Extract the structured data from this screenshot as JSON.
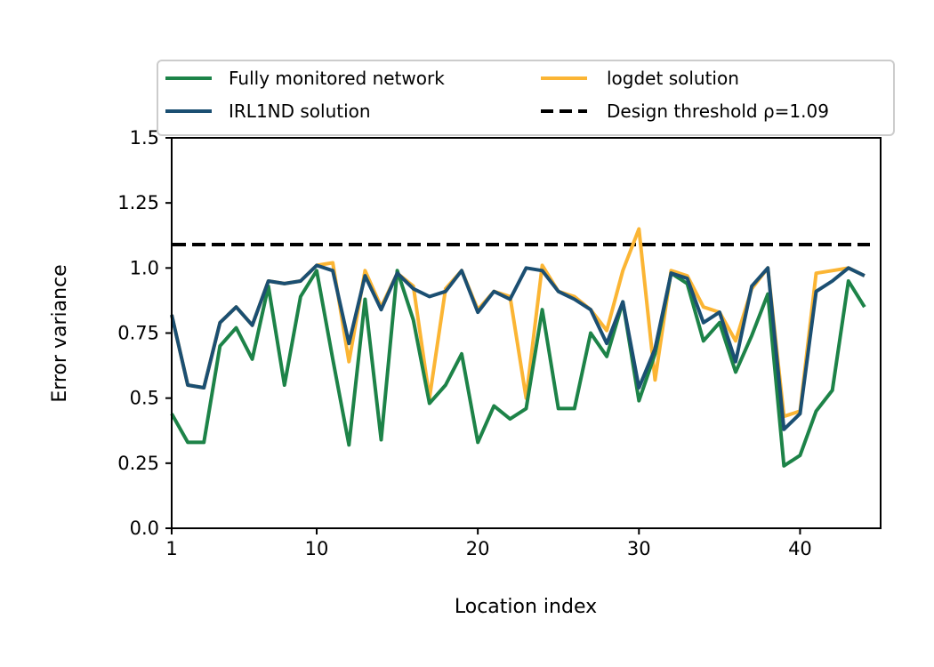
{
  "chart_data": {
    "type": "line",
    "title": "",
    "xlabel": "Location index",
    "ylabel": "Error variance",
    "xlim": [
      1,
      45
    ],
    "ylim": [
      0,
      1.5
    ],
    "grid": false,
    "legend_position": "top",
    "x_ticks": [
      {
        "value": 1,
        "label": "1"
      },
      {
        "value": 10,
        "label": "10"
      },
      {
        "value": 20,
        "label": "20"
      },
      {
        "value": 30,
        "label": "30"
      },
      {
        "value": 40,
        "label": "40"
      }
    ],
    "y_ticks": [
      {
        "value": 0,
        "label": "0.0"
      },
      {
        "value": 0.25,
        "label": "0.25"
      },
      {
        "value": 0.5,
        "label": "0.5"
      },
      {
        "value": 0.75,
        "label": "0.75"
      },
      {
        "value": 1.0,
        "label": "1.0"
      },
      {
        "value": 1.25,
        "label": "1.25"
      },
      {
        "value": 1.5,
        "label": "1.5"
      }
    ],
    "threshold": {
      "name": "Design threshold ρ=1.09",
      "value": 1.09,
      "color": "#000000",
      "dash": true
    },
    "x": [
      1,
      2,
      3,
      4,
      5,
      6,
      7,
      8,
      9,
      10,
      11,
      12,
      13,
      14,
      15,
      16,
      17,
      18,
      19,
      20,
      21,
      22,
      23,
      24,
      25,
      26,
      27,
      28,
      29,
      30,
      31,
      32,
      33,
      34,
      35,
      36,
      37,
      38,
      39,
      40,
      41,
      42,
      43,
      44
    ],
    "series": [
      {
        "name": "logdet solution",
        "color": "#fbb534",
        "values": [
          0.82,
          0.55,
          0.54,
          0.79,
          0.85,
          0.78,
          0.95,
          0.94,
          0.95,
          1.01,
          1.02,
          0.64,
          0.99,
          0.85,
          0.98,
          0.93,
          0.5,
          0.92,
          0.99,
          0.84,
          0.91,
          0.89,
          0.5,
          1.01,
          0.91,
          0.89,
          0.84,
          0.76,
          0.99,
          1.15,
          0.57,
          0.99,
          0.97,
          0.85,
          0.83,
          0.72,
          0.92,
          1.0,
          0.43,
          0.45,
          0.98,
          0.99,
          1.0,
          0.97
        ]
      },
      {
        "name": "Fully monitored network",
        "color": "#1d8348",
        "values": [
          0.44,
          0.33,
          0.33,
          0.7,
          0.77,
          0.65,
          0.93,
          0.55,
          0.89,
          0.99,
          0.65,
          0.32,
          0.88,
          0.34,
          0.99,
          0.8,
          0.48,
          0.55,
          0.67,
          0.33,
          0.47,
          0.42,
          0.46,
          0.84,
          0.46,
          0.46,
          0.75,
          0.66,
          0.87,
          0.49,
          0.67,
          0.98,
          0.94,
          0.72,
          0.79,
          0.6,
          0.74,
          0.9,
          0.24,
          0.28,
          0.45,
          0.53,
          0.95,
          0.85
        ]
      },
      {
        "name": "IRL1ND solution",
        "color": "#1b4f72",
        "values": [
          0.82,
          0.55,
          0.54,
          0.79,
          0.85,
          0.78,
          0.95,
          0.94,
          0.95,
          1.01,
          0.99,
          0.71,
          0.97,
          0.84,
          0.98,
          0.92,
          0.89,
          0.91,
          0.99,
          0.83,
          0.91,
          0.88,
          1.0,
          0.99,
          0.91,
          0.88,
          0.84,
          0.71,
          0.87,
          0.54,
          0.69,
          0.98,
          0.96,
          0.79,
          0.83,
          0.64,
          0.93,
          1.0,
          0.38,
          0.44,
          0.91,
          0.95,
          1.0,
          0.97
        ]
      }
    ],
    "legend": [
      {
        "label": "Fully monitored network",
        "color": "#1d8348",
        "dash": false
      },
      {
        "label": "IRL1ND solution",
        "color": "#1b4f72",
        "dash": false
      },
      {
        "label": "logdet solution",
        "color": "#fbb534",
        "dash": false
      },
      {
        "label": "Design threshold ρ=1.09",
        "color": "#000000",
        "dash": true
      }
    ]
  }
}
